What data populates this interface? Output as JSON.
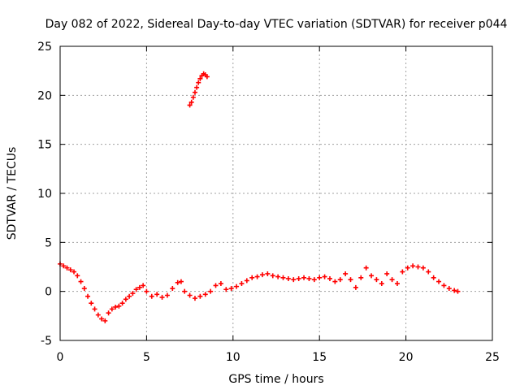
{
  "chart_data": {
    "type": "scatter",
    "title": "Day 082 of 2022, Sidereal Day-to-day VTEC variation (SDTVAR) for receiver p044",
    "xlabel": "GPS time / hours",
    "ylabel": "SDTVAR / TECUs",
    "xlim": [
      0,
      25
    ],
    "ylim": [
      -5,
      25
    ],
    "xticks": [
      0,
      5,
      10,
      15,
      20,
      25
    ],
    "yticks": [
      -5,
      0,
      5,
      10,
      15,
      20,
      25
    ],
    "grid": true,
    "marker": "+",
    "color": "#ff0000",
    "series": [
      {
        "name": "SDTVAR",
        "points": [
          [
            0.0,
            2.8
          ],
          [
            0.2,
            2.6
          ],
          [
            0.4,
            2.4
          ],
          [
            0.6,
            2.2
          ],
          [
            0.8,
            2.0
          ],
          [
            1.0,
            1.6
          ],
          [
            1.2,
            1.0
          ],
          [
            1.4,
            0.3
          ],
          [
            1.6,
            -0.5
          ],
          [
            1.8,
            -1.2
          ],
          [
            2.0,
            -1.8
          ],
          [
            2.2,
            -2.4
          ],
          [
            2.4,
            -2.8
          ],
          [
            2.6,
            -3.0
          ],
          [
            2.8,
            -2.2
          ],
          [
            3.0,
            -1.8
          ],
          [
            3.2,
            -1.6
          ],
          [
            3.4,
            -1.5
          ],
          [
            3.6,
            -1.2
          ],
          [
            3.8,
            -0.8
          ],
          [
            4.0,
            -0.5
          ],
          [
            4.2,
            -0.2
          ],
          [
            4.4,
            0.2
          ],
          [
            4.6,
            0.4
          ],
          [
            4.8,
            0.6
          ],
          [
            5.0,
            0.0
          ],
          [
            5.3,
            -0.5
          ],
          [
            5.6,
            -0.3
          ],
          [
            5.9,
            -0.6
          ],
          [
            6.2,
            -0.4
          ],
          [
            6.5,
            0.3
          ],
          [
            6.8,
            0.9
          ],
          [
            7.0,
            1.0
          ],
          [
            7.2,
            0.0
          ],
          [
            7.5,
            -0.4
          ],
          [
            7.8,
            -0.7
          ],
          [
            8.1,
            -0.5
          ],
          [
            8.4,
            -0.3
          ],
          [
            8.7,
            0.0
          ],
          [
            9.0,
            0.6
          ],
          [
            9.3,
            0.8
          ],
          [
            9.6,
            0.2
          ],
          [
            9.9,
            0.3
          ],
          [
            10.2,
            0.5
          ],
          [
            10.5,
            0.8
          ],
          [
            10.8,
            1.1
          ],
          [
            11.1,
            1.4
          ],
          [
            11.4,
            1.5
          ],
          [
            11.7,
            1.7
          ],
          [
            12.0,
            1.8
          ],
          [
            12.3,
            1.6
          ],
          [
            12.6,
            1.5
          ],
          [
            12.9,
            1.4
          ],
          [
            13.2,
            1.3
          ],
          [
            13.5,
            1.2
          ],
          [
            13.8,
            1.3
          ],
          [
            14.1,
            1.4
          ],
          [
            14.4,
            1.3
          ],
          [
            14.7,
            1.2
          ],
          [
            15.0,
            1.4
          ],
          [
            15.3,
            1.5
          ],
          [
            15.6,
            1.3
          ],
          [
            15.9,
            1.0
          ],
          [
            16.2,
            1.2
          ],
          [
            16.5,
            1.8
          ],
          [
            16.8,
            1.2
          ],
          [
            17.1,
            0.4
          ],
          [
            17.4,
            1.4
          ],
          [
            17.7,
            2.4
          ],
          [
            18.0,
            1.6
          ],
          [
            18.3,
            1.2
          ],
          [
            18.6,
            0.8
          ],
          [
            18.9,
            1.8
          ],
          [
            19.2,
            1.2
          ],
          [
            19.5,
            0.8
          ],
          [
            19.8,
            2.0
          ],
          [
            20.1,
            2.4
          ],
          [
            20.4,
            2.6
          ],
          [
            20.7,
            2.5
          ],
          [
            21.0,
            2.4
          ],
          [
            21.3,
            2.0
          ],
          [
            21.6,
            1.4
          ],
          [
            21.9,
            1.0
          ],
          [
            22.2,
            0.6
          ],
          [
            22.5,
            0.3
          ],
          [
            22.8,
            0.1
          ],
          [
            23.0,
            0.0
          ],
          [
            7.5,
            19.0
          ],
          [
            7.6,
            19.3
          ],
          [
            7.7,
            19.8
          ],
          [
            7.8,
            20.3
          ],
          [
            7.9,
            20.8
          ],
          [
            8.0,
            21.3
          ],
          [
            8.1,
            21.7
          ],
          [
            8.2,
            22.0
          ],
          [
            8.3,
            22.2
          ],
          [
            8.4,
            22.1
          ],
          [
            8.5,
            21.9
          ]
        ]
      }
    ]
  }
}
